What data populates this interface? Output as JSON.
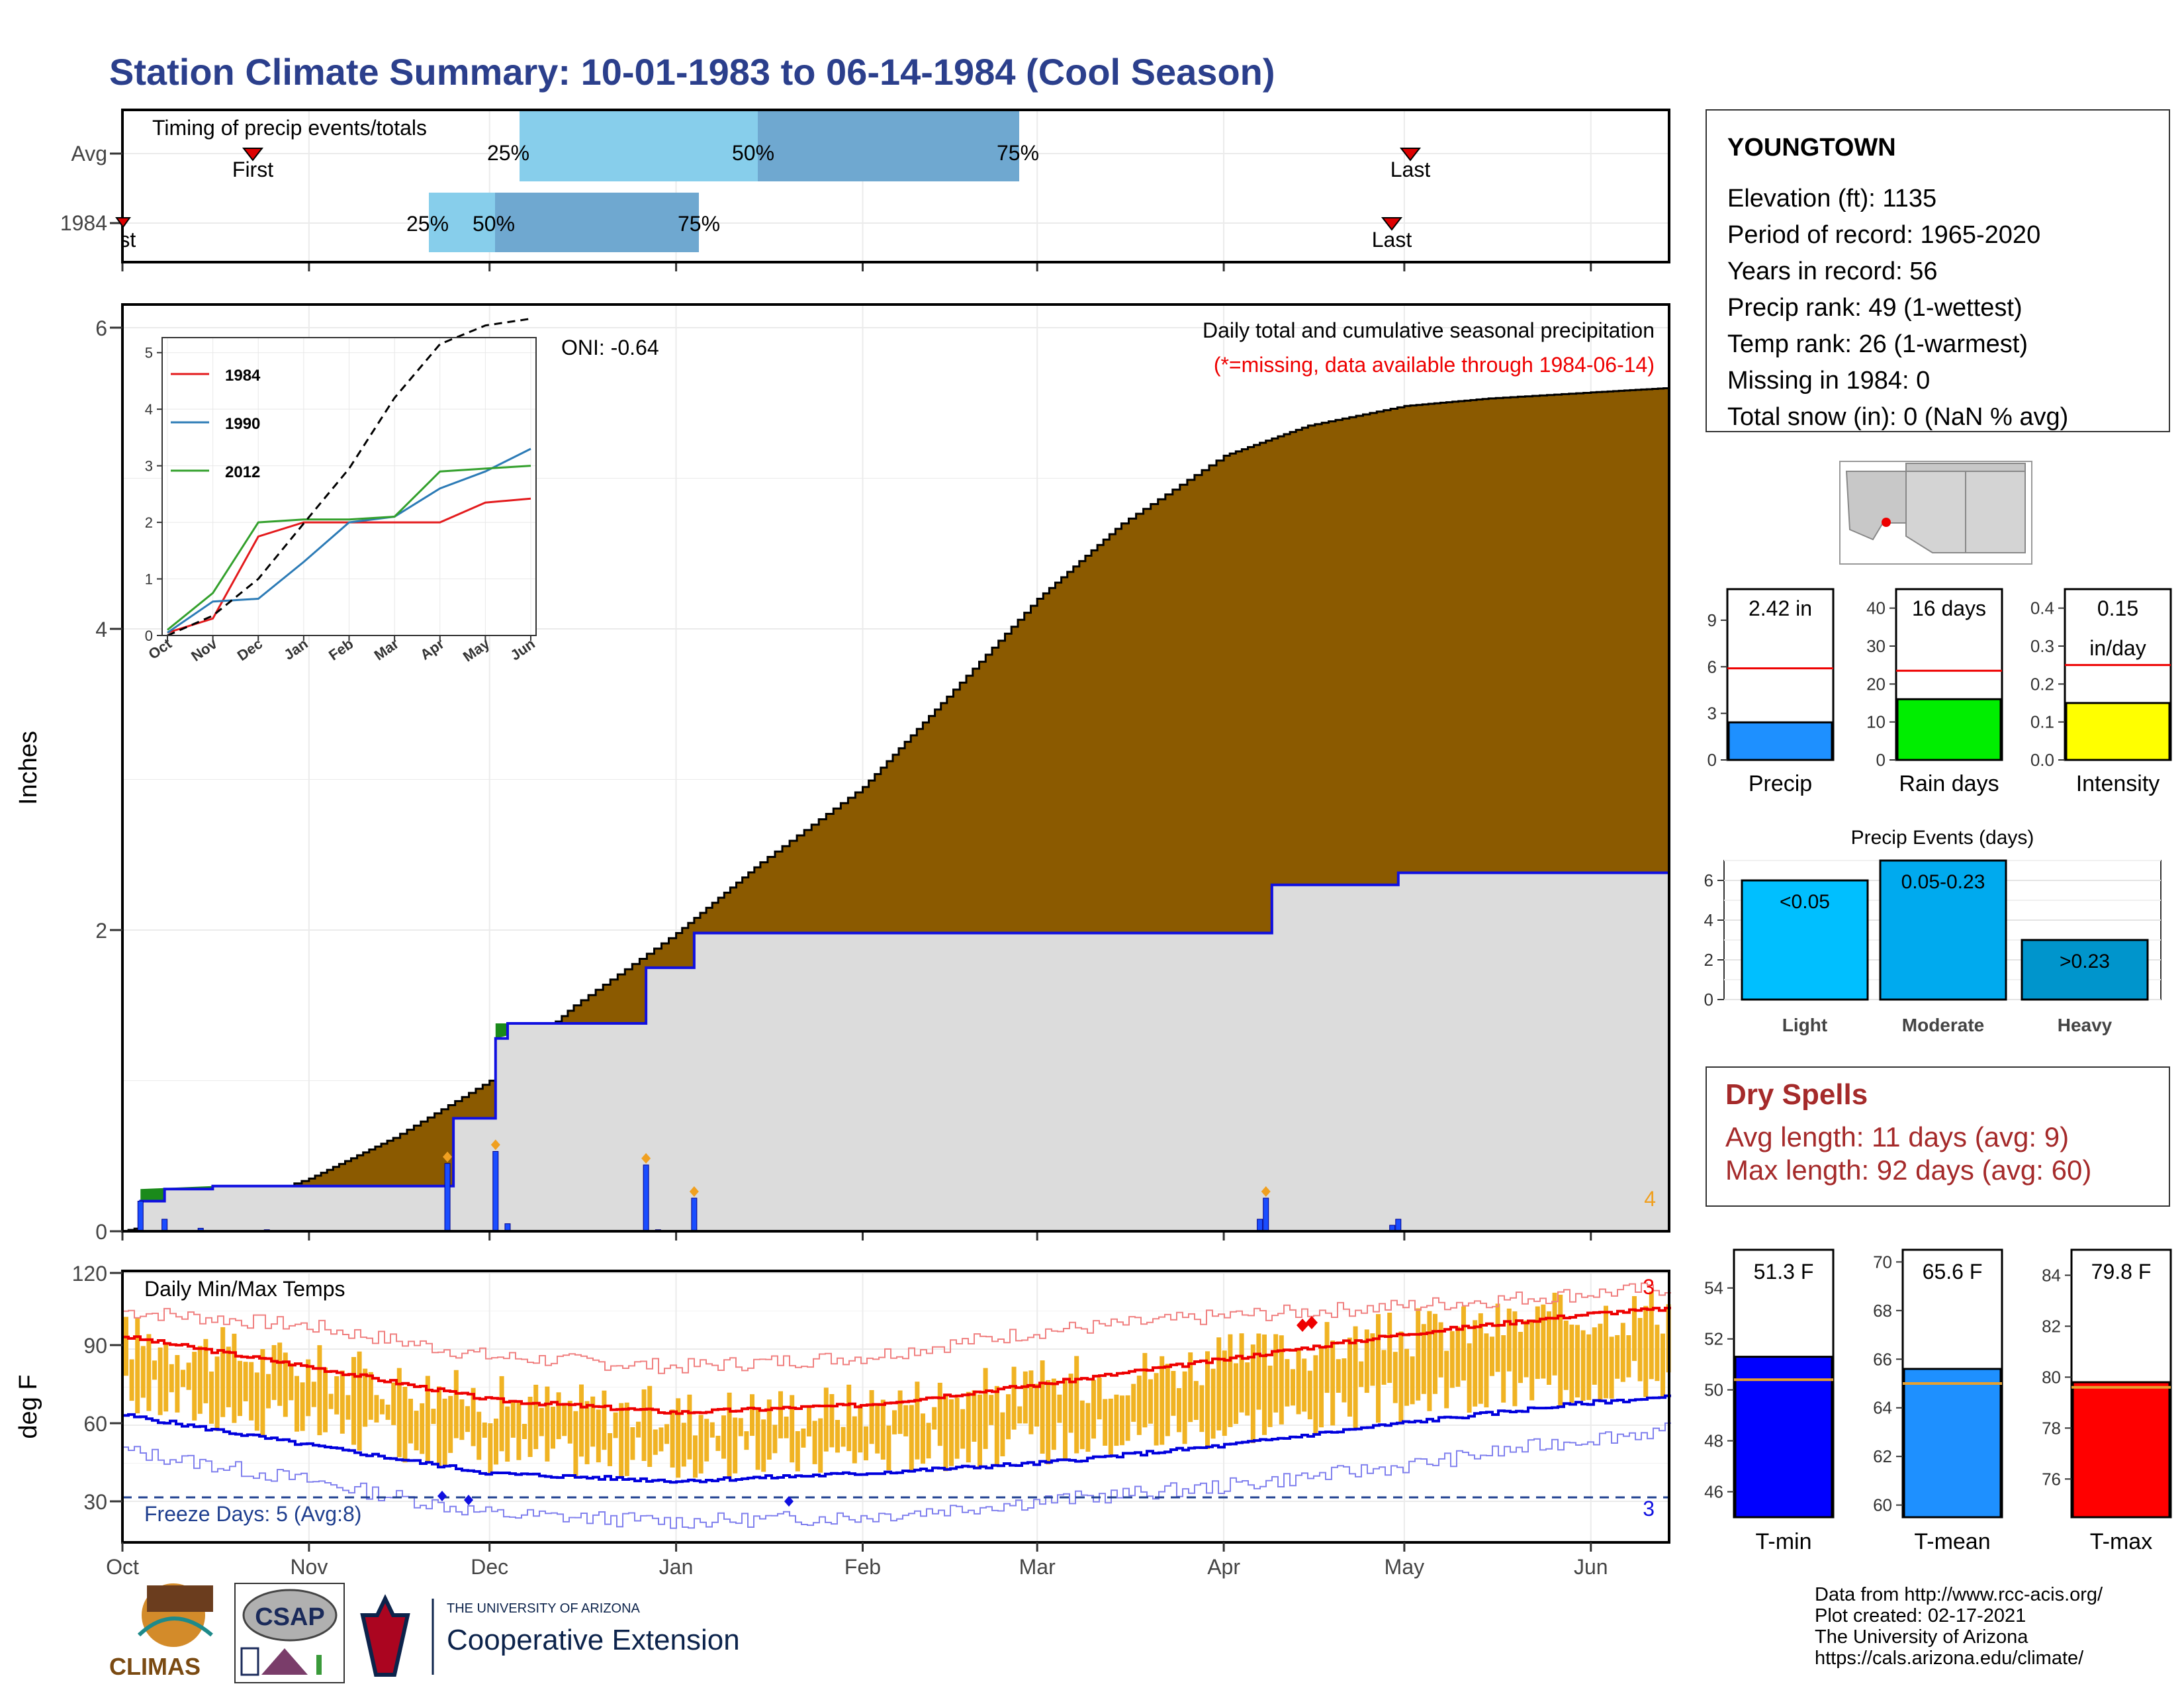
{
  "title": "Station Climate Summary: 10-01-1983 to 06-14-1984 (Cool Season)",
  "colors": {
    "title": "#2b3f8c",
    "cum_avg_fill": "#8b5a00",
    "cum_year_fill": "#dcdcdc",
    "year_line": "#1010e0",
    "green_fill": "#1a8a1a",
    "daily_bar": "#1a4dff",
    "marker": "#f0a020",
    "temp_band": "#f0b323",
    "tmax_line": "#ee0000",
    "tmin_line": "#0000dd",
    "freeze_line": "#1f3f8f",
    "dryspell": "#a52a2a"
  },
  "station": {
    "name": "YOUNGTOWN",
    "lines": [
      "Elevation (ft): 1135",
      "Period of record: 1965-2020",
      "Years in record: 56",
      "Precip rank: 49 (1-wettest)",
      "Temp rank: 26 (1-warmest)",
      "Missing in 1984: 0",
      "Total snow (in): 0 (NaN % avg)"
    ]
  },
  "timing": {
    "label": "Timing of precip events/totals",
    "rows": [
      {
        "name": "Avg",
        "first": "First",
        "last": "Last",
        "p25": "25%",
        "p50": "50%",
        "p75": "75%"
      },
      {
        "name": "1984",
        "first": "First",
        "last": "Last",
        "p25": "25%",
        "p50": "50%",
        "p75": "75%"
      }
    ]
  },
  "precip_panel": {
    "title": "Daily total and cumulative seasonal precipitation",
    "missing_note": "(*=missing, data available through 1984-06-14)",
    "oni": "ONI: -0.64",
    "ylabel": "Inches",
    "yticks": [
      "0",
      "2",
      "4",
      "6"
    ],
    "marker_count": "4"
  },
  "inset": {
    "yticks": [
      "0",
      "1",
      "2",
      "3",
      "4",
      "5"
    ],
    "xticks": [
      "Oct",
      "Nov",
      "Dec",
      "Jan",
      "Feb",
      "Mar",
      "Apr",
      "May",
      "Jun"
    ],
    "legend": [
      "1984",
      "1990",
      "2012"
    ],
    "legend_colors": [
      "#e31a1c",
      "#2c7bb6",
      "#33a02c"
    ]
  },
  "temp_panel": {
    "title": "Daily Min/Max Temps",
    "ylabel": "deg F",
    "yticks": [
      "30",
      "60",
      "90",
      "120"
    ],
    "freeze": "Freeze Days: 5 (Avg:8)",
    "count_high": "3",
    "count_low": "3"
  },
  "months": [
    "Oct",
    "Nov",
    "Dec",
    "Jan",
    "Feb",
    "Mar",
    "Apr",
    "May",
    "Jun"
  ],
  "gauges": [
    {
      "label": "Precip",
      "value_text": "2.42 in",
      "yticks": [
        "0",
        "3",
        "6",
        "9"
      ],
      "color": "#1e90ff"
    },
    {
      "label": "Rain days",
      "value_text": "16 days",
      "yticks": [
        "0",
        "10",
        "20",
        "30",
        "40"
      ],
      "color": "#00ee00"
    },
    {
      "label": "Intensity",
      "value_text": "0.15",
      "value_text2": "in/day",
      "yticks": [
        "0.0",
        "0.1",
        "0.2",
        "0.3",
        "0.4"
      ],
      "color": "#ffff00"
    }
  ],
  "events": {
    "title": "Precip Events (days)",
    "yticks": [
      "0",
      "2",
      "4",
      "6"
    ],
    "bars": [
      {
        "label": "Light",
        "text": "<0.05",
        "color": "#00bfff"
      },
      {
        "label": "Moderate",
        "text": "0.05-0.23",
        "color": "#00aaee"
      },
      {
        "label": "Heavy",
        "text": ">0.23",
        "color": "#0095cc"
      }
    ]
  },
  "dry_spells": {
    "title": "Dry Spells",
    "avg": "Avg length: 11 days (avg: 9)",
    "max": "Max length: 92 days (avg: 60)"
  },
  "temp_gauges": [
    {
      "label": "T-min",
      "value_text": "51.3 F",
      "yticks": [
        "46",
        "48",
        "50",
        "52",
        "54"
      ],
      "color": "#0000ff"
    },
    {
      "label": "T-mean",
      "value_text": "65.6 F",
      "yticks": [
        "60",
        "62",
        "64",
        "66",
        "68",
        "70"
      ],
      "color": "#1e90ff"
    },
    {
      "label": "T-max",
      "value_text": "79.8 F",
      "yticks": [
        "76",
        "78",
        "80",
        "82",
        "84"
      ],
      "color": "#ff0000"
    }
  ],
  "credits": [
    "Data from http://www.rcc-acis.org/",
    "Plot created: 02-17-2021",
    "The University of Arizona",
    "https://cals.arizona.edu/climate/"
  ],
  "logos": {
    "climas": "CLIMAS",
    "csap": "CSAP",
    "ua_small": "THE UNIVERSITY OF ARIZONA",
    "ua_big": "Cooperative Extension"
  },
  "chart_data": [
    {
      "type": "area",
      "title": "Daily total and cumulative seasonal precipitation",
      "ylabel": "Inches",
      "ylim": [
        0,
        6
      ],
      "x_range": [
        "1983-10-01",
        "1984-06-14"
      ],
      "series": [
        {
          "name": "Avg",
          "x": [
            "1983-10-01",
            "1983-10-15",
            "1983-11-01",
            "1983-11-15",
            "1983-12-01",
            "1983-12-15",
            "1984-01-01",
            "1984-01-15",
            "1984-02-01",
            "1984-02-15",
            "1984-03-01",
            "1984-03-15",
            "1984-04-01",
            "1984-04-15",
            "1984-05-01",
            "1984-05-15",
            "1984-06-01",
            "1984-06-14"
          ],
          "values": [
            0.0,
            0.12,
            0.35,
            0.62,
            1.0,
            1.5,
            1.98,
            2.45,
            2.95,
            3.55,
            4.2,
            4.7,
            5.15,
            5.35,
            5.48,
            5.53,
            5.57,
            5.6
          ]
        },
        {
          "name": "1984",
          "x": [
            "1983-10-01",
            "1983-10-04",
            "1983-10-08",
            "1983-10-16",
            "1983-11-24",
            "1983-11-25",
            "1983-12-01",
            "1983-12-02",
            "1983-12-04",
            "1983-12-27",
            "1984-01-04",
            "1984-04-09",
            "1984-04-30",
            "1984-06-14"
          ],
          "values": [
            0.0,
            0.2,
            0.28,
            0.3,
            0.3,
            0.75,
            0.75,
            1.28,
            1.38,
            1.75,
            1.98,
            2.3,
            2.38,
            2.42
          ]
        }
      ]
    },
    {
      "type": "line",
      "title": "",
      "ylabel": "",
      "ylim": [
        0,
        5.5
      ],
      "x": [
        "Oct",
        "Nov",
        "Dec",
        "Jan",
        "Feb",
        "Mar",
        "Apr",
        "May",
        "Jun"
      ],
      "series": [
        {
          "name": "1984",
          "values": [
            0.05,
            0.3,
            1.75,
            2.0,
            2.0,
            2.0,
            2.0,
            2.35,
            2.42
          ]
        },
        {
          "name": "1990",
          "values": [
            0.05,
            0.6,
            0.65,
            1.3,
            2.0,
            2.1,
            2.6,
            2.9,
            3.3
          ]
        },
        {
          "name": "2012",
          "values": [
            0.1,
            0.75,
            2.0,
            2.05,
            2.05,
            2.1,
            2.9,
            2.95,
            3.0
          ]
        },
        {
          "name": "Avg",
          "values": [
            0.0,
            0.35,
            1.0,
            1.98,
            2.95,
            4.2,
            5.15,
            5.48,
            5.6
          ]
        }
      ]
    },
    {
      "type": "line",
      "title": "Daily Min/Max Temps",
      "ylabel": "deg F",
      "ylim": [
        15,
        120
      ],
      "x": [
        "1983-10-01",
        "1983-11-01",
        "1983-12-01",
        "1984-01-01",
        "1984-02-01",
        "1984-03-01",
        "1984-04-01",
        "1984-05-01",
        "1984-06-01",
        "1984-06-14"
      ],
      "series": [
        {
          "name": "Normal max",
          "values": [
            95,
            83,
            70,
            65,
            68,
            76,
            86,
            96,
            104,
            106
          ]
        },
        {
          "name": "Normal min",
          "values": [
            64,
            52,
            41,
            38,
            41,
            45,
            52,
            61,
            69,
            71
          ]
        },
        {
          "name": "Record high",
          "values": [
            105,
            99,
            87,
            83,
            87,
            97,
            103,
            107,
            112,
            114
          ]
        },
        {
          "name": "Record low",
          "values": [
            50,
            38,
            25,
            22,
            24,
            30,
            36,
            44,
            55,
            58
          ]
        }
      ]
    },
    {
      "type": "bar",
      "title": "Precip Events (days)",
      "categories": [
        "Light",
        "Moderate",
        "Heavy"
      ],
      "values": [
        6,
        7,
        3
      ],
      "ylim": [
        0,
        7
      ]
    },
    {
      "type": "bar",
      "categories": [
        "Precip",
        "Rain days",
        "Intensity"
      ],
      "series": [
        {
          "name": "1984",
          "values": [
            2.42,
            16,
            0.15
          ]
        },
        {
          "name": "Avg",
          "values": [
            5.9,
            23.5,
            0.25
          ]
        }
      ]
    },
    {
      "type": "bar",
      "categories": [
        "T-min",
        "T-mean",
        "T-max"
      ],
      "series": [
        {
          "name": "1984",
          "values": [
            51.3,
            65.6,
            79.8
          ]
        },
        {
          "name": "Avg",
          "values": [
            50.4,
            65.0,
            79.6
          ]
        }
      ]
    }
  ]
}
